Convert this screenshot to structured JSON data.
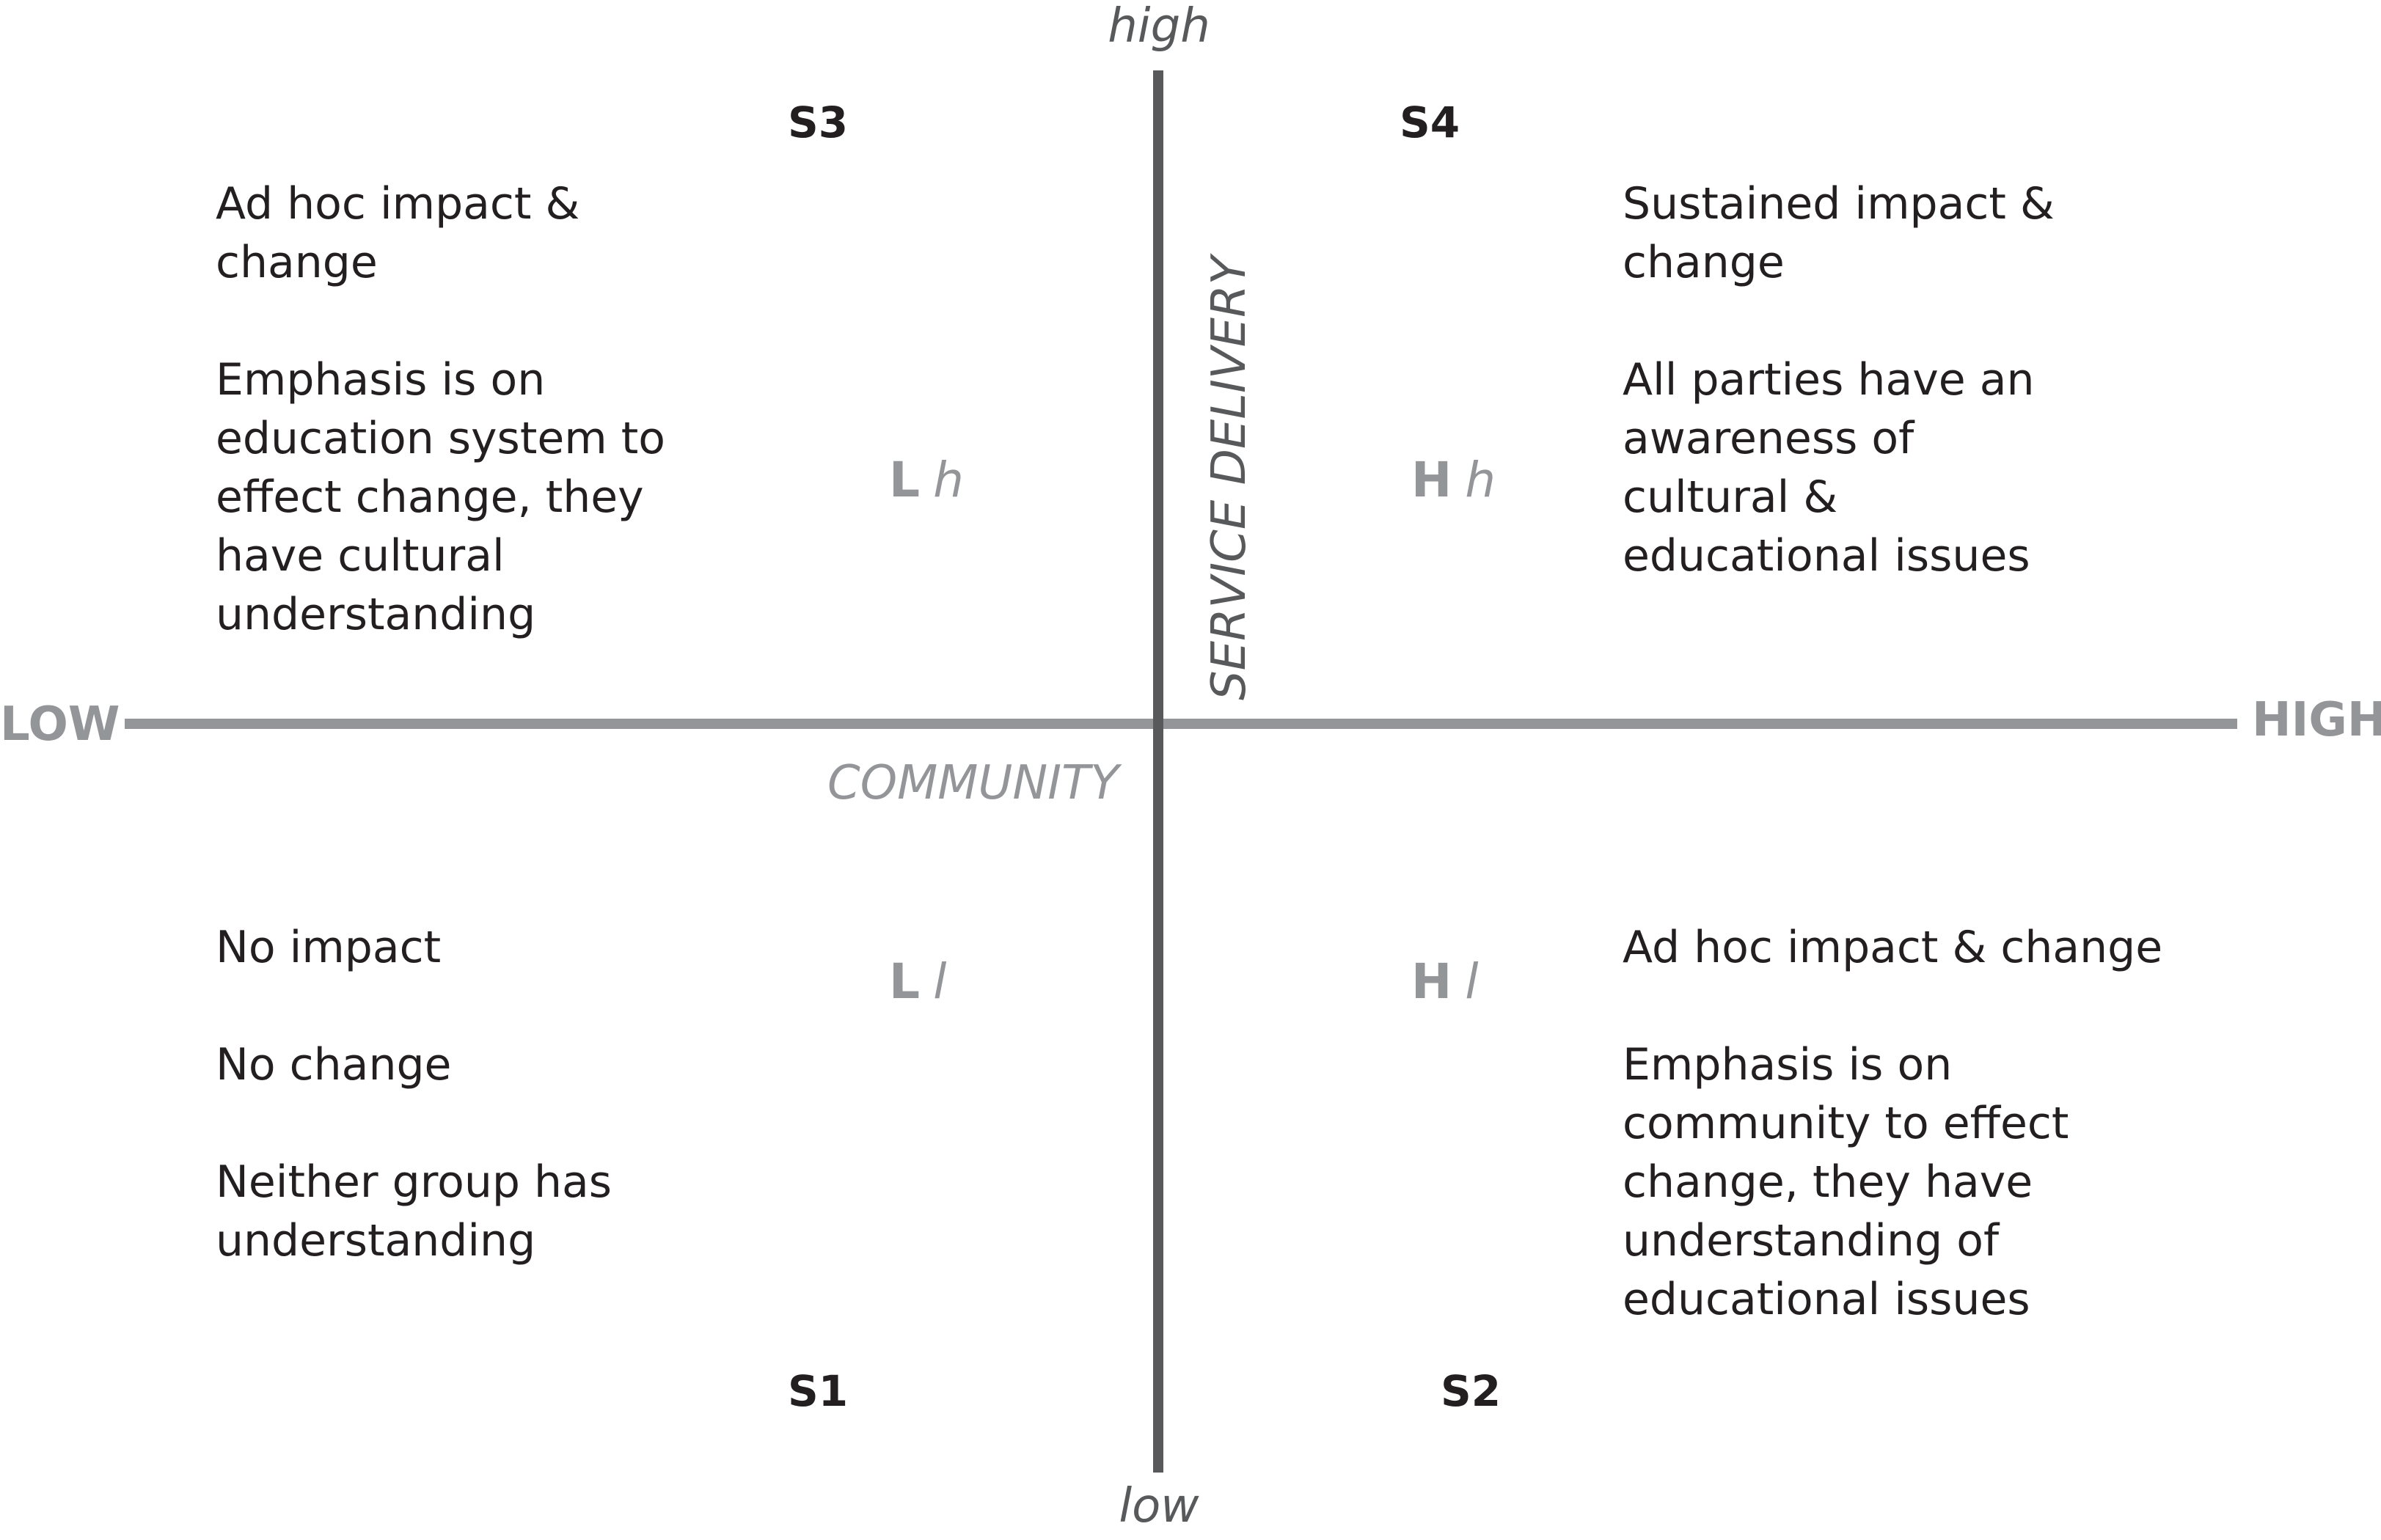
{
  "axes": {
    "community": {
      "title": "COMMUNITY",
      "low_label": "LOW",
      "high_label": "HIGH"
    },
    "service_delivery": {
      "title": "SERVICE DELIVERY",
      "low_label": "low",
      "high_label": "high"
    }
  },
  "quadrants": {
    "top_left": {
      "sector": "S3",
      "code_major": "L",
      "code_minor": "h",
      "lines": [
        "Ad hoc impact & change",
        "Emphasis is on education system to effect change, they have cultural understanding"
      ]
    },
    "top_right": {
      "sector": "S4",
      "code_major": "H",
      "code_minor": "h",
      "lines": [
        "Sustained impact & change",
        "All parties have an awareness of cultural & educational issues"
      ]
    },
    "bottom_left": {
      "sector": "S1",
      "code_major": "L",
      "code_minor": "l",
      "lines": [
        "No impact",
        "No change",
        "Neither group has understanding"
      ]
    },
    "bottom_right": {
      "sector": "S2",
      "code_major": "H",
      "code_minor": "l",
      "lines": [
        "Ad hoc impact & change",
        "Emphasis is on community to effect change, they have understanding of educational issues"
      ]
    }
  },
  "colors": {
    "community_axis": "#939598",
    "service_axis": "#58595b",
    "text": "#231f20"
  }
}
